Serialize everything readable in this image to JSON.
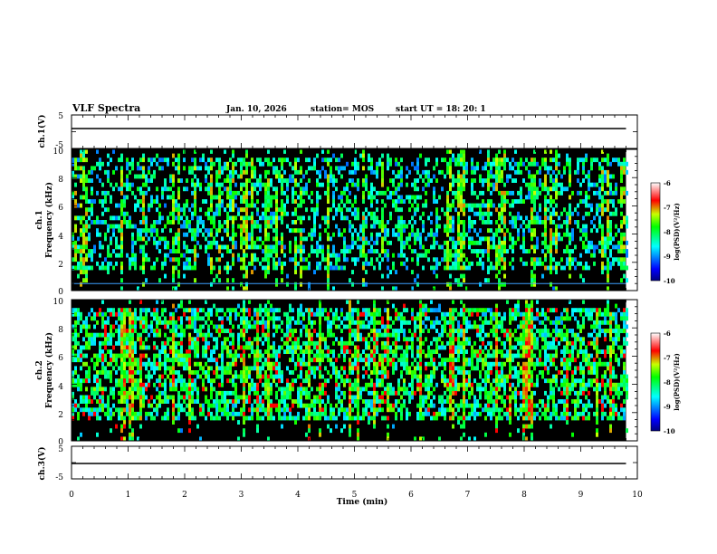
{
  "header": {
    "title": "VLF Spectra",
    "date": "Jan. 10, 2026",
    "station": "station= MOS",
    "start": "start  UT =   18: 20: 1"
  },
  "chart_data": [
    {
      "type": "line",
      "name": "ch1-voltage",
      "ylabel": "ch.1(V)",
      "xlim": [
        0,
        10
      ],
      "ylim": [
        -5,
        5
      ],
      "y_tick_labels": [
        "5",
        "-5"
      ],
      "series": [
        {
          "name": "ch.1",
          "x": [
            0,
            9.8
          ],
          "y": [
            0,
            0
          ]
        }
      ]
    },
    {
      "type": "heatmap",
      "name": "ch1-spectrogram",
      "channel_label": "ch.1",
      "ylabel": "Frequency (kHz)",
      "xlim": [
        0,
        10
      ],
      "ylim": [
        0,
        10
      ],
      "data_end_min": 9.8,
      "y_tick_labels": [
        "0",
        "2",
        "4",
        "6",
        "8",
        "10"
      ],
      "colorbar": {
        "label": "log(PSD)(V²/Hz)",
        "range": [
          -10,
          -6
        ],
        "tick_labels": [
          "-6",
          "-7",
          "-8",
          "-9",
          "-10"
        ]
      }
    },
    {
      "type": "heatmap",
      "name": "ch2-spectrogram",
      "channel_label": "ch.2",
      "ylabel": "Frequency (kHz)",
      "xlim": [
        0,
        10
      ],
      "ylim": [
        0,
        10
      ],
      "data_end_min": 9.8,
      "y_tick_labels": [
        "0",
        "2",
        "4",
        "6",
        "8",
        "10"
      ],
      "colorbar": {
        "label": "log(PSD)(V²/Hz)",
        "range": [
          -10,
          -6
        ],
        "tick_labels": [
          "-6",
          "-7",
          "-8",
          "-9",
          "-10"
        ]
      }
    },
    {
      "type": "line",
      "name": "ch3-voltage",
      "ylabel": "ch.3(V)",
      "xlim": [
        0,
        10
      ],
      "ylim": [
        -5,
        5
      ],
      "y_tick_labels": [
        "5",
        "-5"
      ],
      "series": [
        {
          "name": "ch.3",
          "x": [
            0,
            9.8
          ],
          "y": [
            0,
            0
          ]
        }
      ]
    }
  ],
  "x_axis": {
    "label": "Time (min)",
    "tick_labels": [
      "0",
      "1",
      "2",
      "3",
      "4",
      "5",
      "6",
      "7",
      "8",
      "9",
      "10"
    ]
  }
}
